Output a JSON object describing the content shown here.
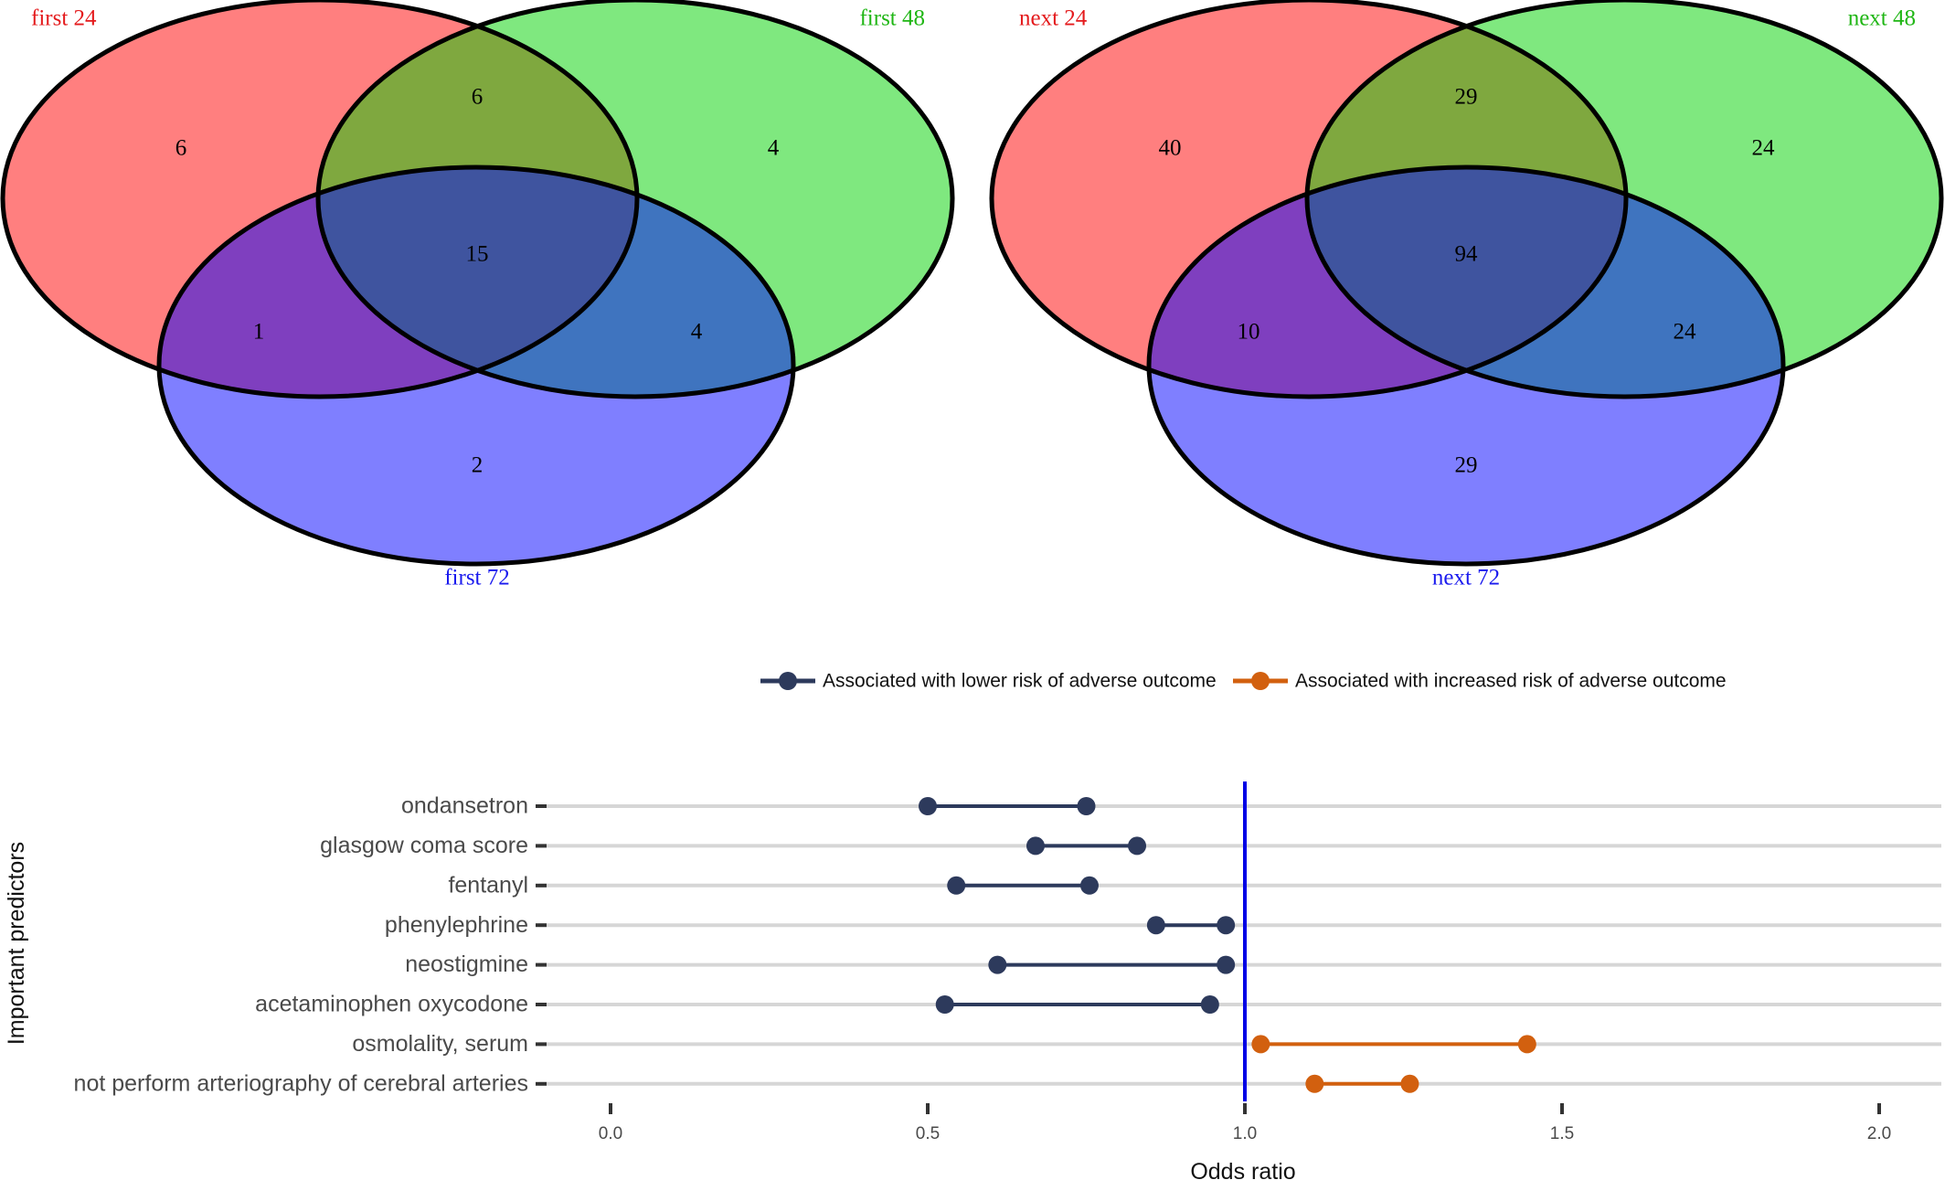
{
  "chart_data": [
    {
      "type": "venn",
      "sets": [
        {
          "label": "first 24",
          "color": "#e41a1c"
        },
        {
          "label": "first 48",
          "color": "#1fb614"
        },
        {
          "label": "first 72",
          "color": "#1a1aee"
        }
      ],
      "regions": {
        "a_only": "6",
        "ab_only": "6",
        "b_only": "4",
        "abc": "15",
        "ac_only": "1",
        "bc_only": "4",
        "c_only": "2"
      }
    },
    {
      "type": "venn",
      "sets": [
        {
          "label": "next 24",
          "color": "#e41a1c"
        },
        {
          "label": "next 48",
          "color": "#1fb614"
        },
        {
          "label": "next 72",
          "color": "#1a1aee"
        }
      ],
      "regions": {
        "a_only": "40",
        "ab_only": "29",
        "b_only": "24",
        "abc": "94",
        "ac_only": "10",
        "bc_only": "24",
        "c_only": "29"
      }
    },
    {
      "type": "dumbbell",
      "xlabel": "Odds ratio",
      "ylabel": "Important predictors",
      "xlim": [
        -0.15,
        2.1
      ],
      "xticks": [
        "0.0",
        "0.5",
        "1.0",
        "1.5",
        "2.0"
      ],
      "reference_line": 1.0,
      "reference_color": "#0000e6",
      "legend_position": "top",
      "series": [
        {
          "name": "Associated with lower risk of adverse outcome",
          "color": "#2d3a5c"
        },
        {
          "name": "Associated with increased risk of adverse outcome",
          "color": "#d2600f"
        }
      ],
      "rows": [
        {
          "label": "ondansetron",
          "low": 0.5,
          "high": 0.75,
          "series": 0
        },
        {
          "label": "glasgow coma score",
          "low": 0.67,
          "high": 0.83,
          "series": 0
        },
        {
          "label": "fentanyl",
          "low": 0.545,
          "high": 0.755,
          "series": 0
        },
        {
          "label": "phenylephrine",
          "low": 0.86,
          "high": 0.97,
          "series": 0
        },
        {
          "label": "neostigmine",
          "low": 0.61,
          "high": 0.97,
          "series": 0
        },
        {
          "label": "acetaminophen oxycodone",
          "low": 0.527,
          "high": 0.945,
          "series": 0
        },
        {
          "label": "osmolality, serum",
          "low": 1.025,
          "high": 1.445,
          "series": 1
        },
        {
          "label": "not perform arteriography of cerebral arteries",
          "low": 1.11,
          "high": 1.26,
          "series": 1
        }
      ]
    }
  ]
}
